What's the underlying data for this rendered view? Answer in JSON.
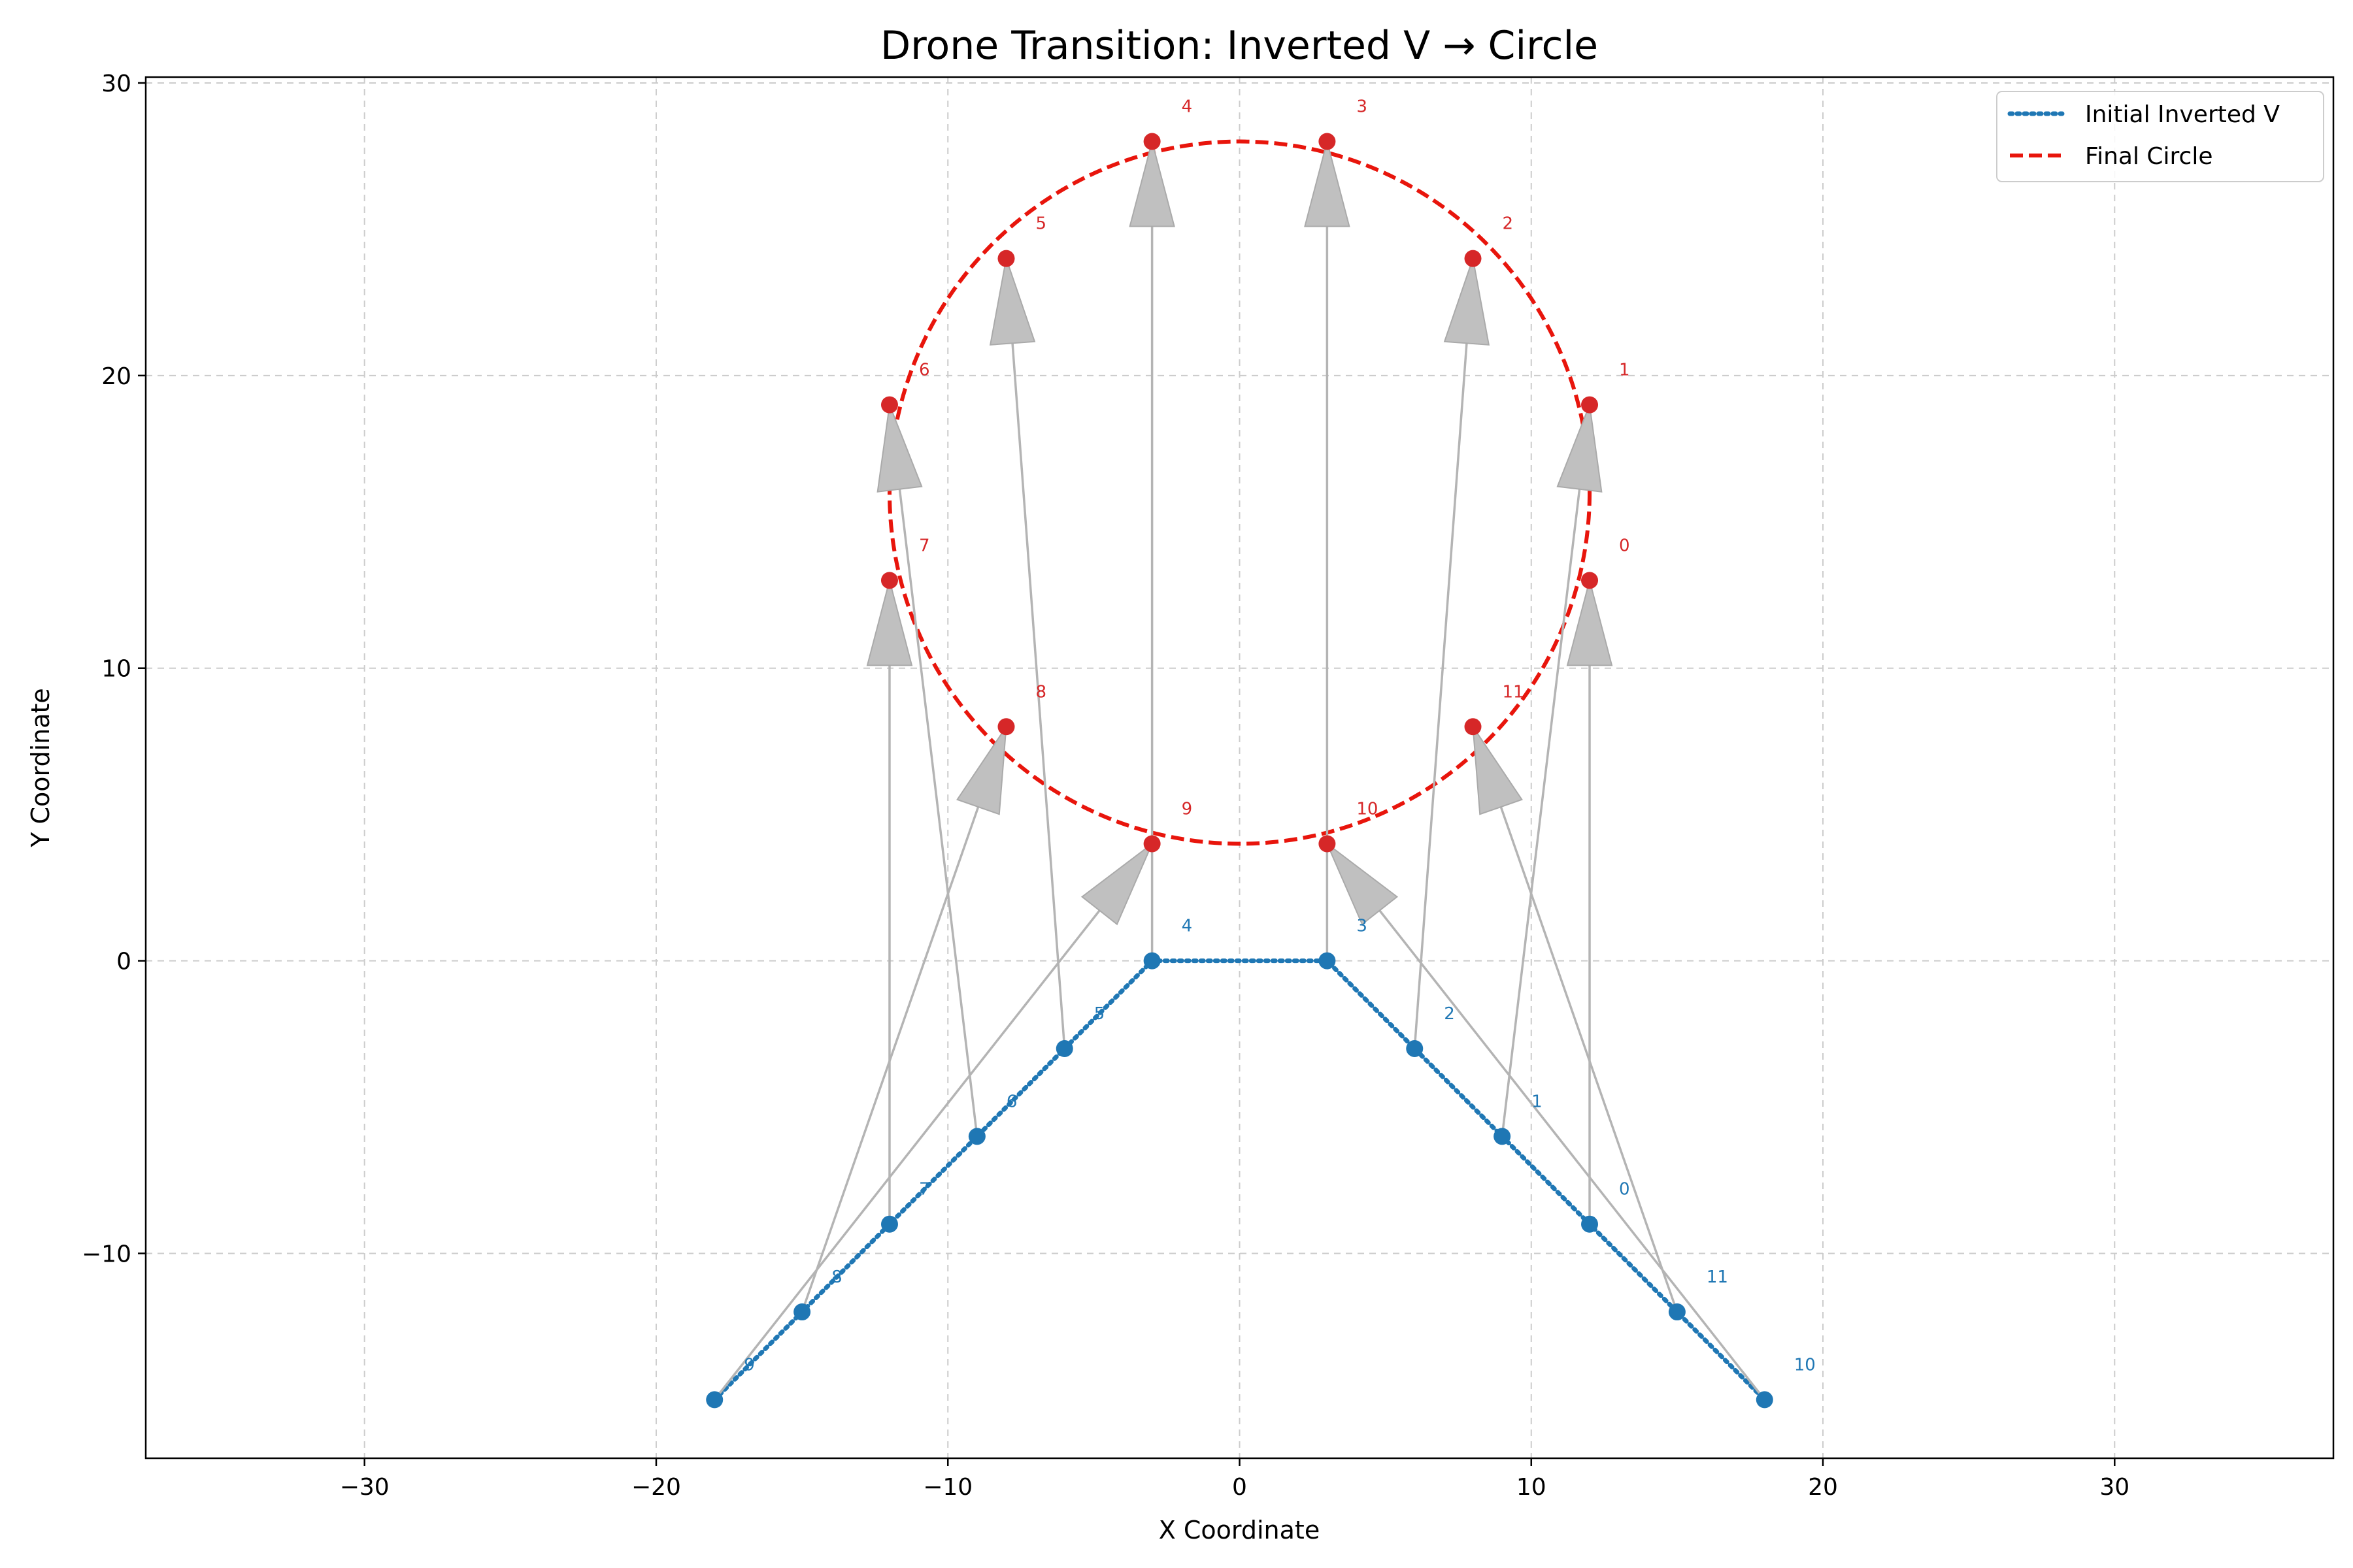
{
  "chart_data": {
    "type": "scatter",
    "title": "Drone Transition: Inverted V → Circle",
    "xlabel": "X Coordinate",
    "ylabel": "Y Coordinate",
    "xlim": [
      -37.5,
      37.5
    ],
    "ylim": [
      -17,
      30.2
    ],
    "xticks": [
      -30,
      -20,
      -10,
      0,
      10,
      20,
      30
    ],
    "yticks": [
      -10,
      0,
      10,
      20,
      30
    ],
    "grid": true,
    "legend_position": "top-right",
    "colors": {
      "initial": "#1f77b4",
      "final": "#d62728",
      "circle_line": "#e8150c",
      "arrow": "#b4b4b4",
      "grid": "#cccccc"
    },
    "series": [
      {
        "name": "Initial Inverted V",
        "style": "dotted",
        "points": [
          {
            "label": "0",
            "x": 12,
            "y": -9
          },
          {
            "label": "1",
            "x": 9,
            "y": -6
          },
          {
            "label": "2",
            "x": 6,
            "y": -3
          },
          {
            "label": "3",
            "x": 3,
            "y": 0
          },
          {
            "label": "4",
            "x": -3,
            "y": 0
          },
          {
            "label": "5",
            "x": -6,
            "y": -3
          },
          {
            "label": "6",
            "x": -9,
            "y": -6
          },
          {
            "label": "7",
            "x": -12,
            "y": -9
          },
          {
            "label": "8",
            "x": -15,
            "y": -12
          },
          {
            "label": "9",
            "x": -18,
            "y": -15
          },
          {
            "label": "10",
            "x": 18,
            "y": -15
          },
          {
            "label": "11",
            "x": 15,
            "y": -12
          }
        ],
        "line_order": [
          9,
          8,
          7,
          6,
          5,
          4,
          3,
          2,
          1,
          0,
          11,
          10
        ]
      },
      {
        "name": "Final Circle",
        "style": "dashed",
        "center": [
          0,
          16
        ],
        "radius": 12,
        "points": [
          {
            "label": "0",
            "x": 12,
            "y": 13
          },
          {
            "label": "1",
            "x": 12,
            "y": 19
          },
          {
            "label": "2",
            "x": 8,
            "y": 24
          },
          {
            "label": "3",
            "x": 3,
            "y": 28
          },
          {
            "label": "4",
            "x": -3,
            "y": 28
          },
          {
            "label": "5",
            "x": -8,
            "y": 24
          },
          {
            "label": "6",
            "x": -12,
            "y": 19
          },
          {
            "label": "7",
            "x": -12,
            "y": 13
          },
          {
            "label": "8",
            "x": -8,
            "y": 8
          },
          {
            "label": "9",
            "x": -3,
            "y": 4
          },
          {
            "label": "10",
            "x": 3,
            "y": 4
          },
          {
            "label": "11",
            "x": 8,
            "y": 8
          }
        ]
      }
    ]
  }
}
